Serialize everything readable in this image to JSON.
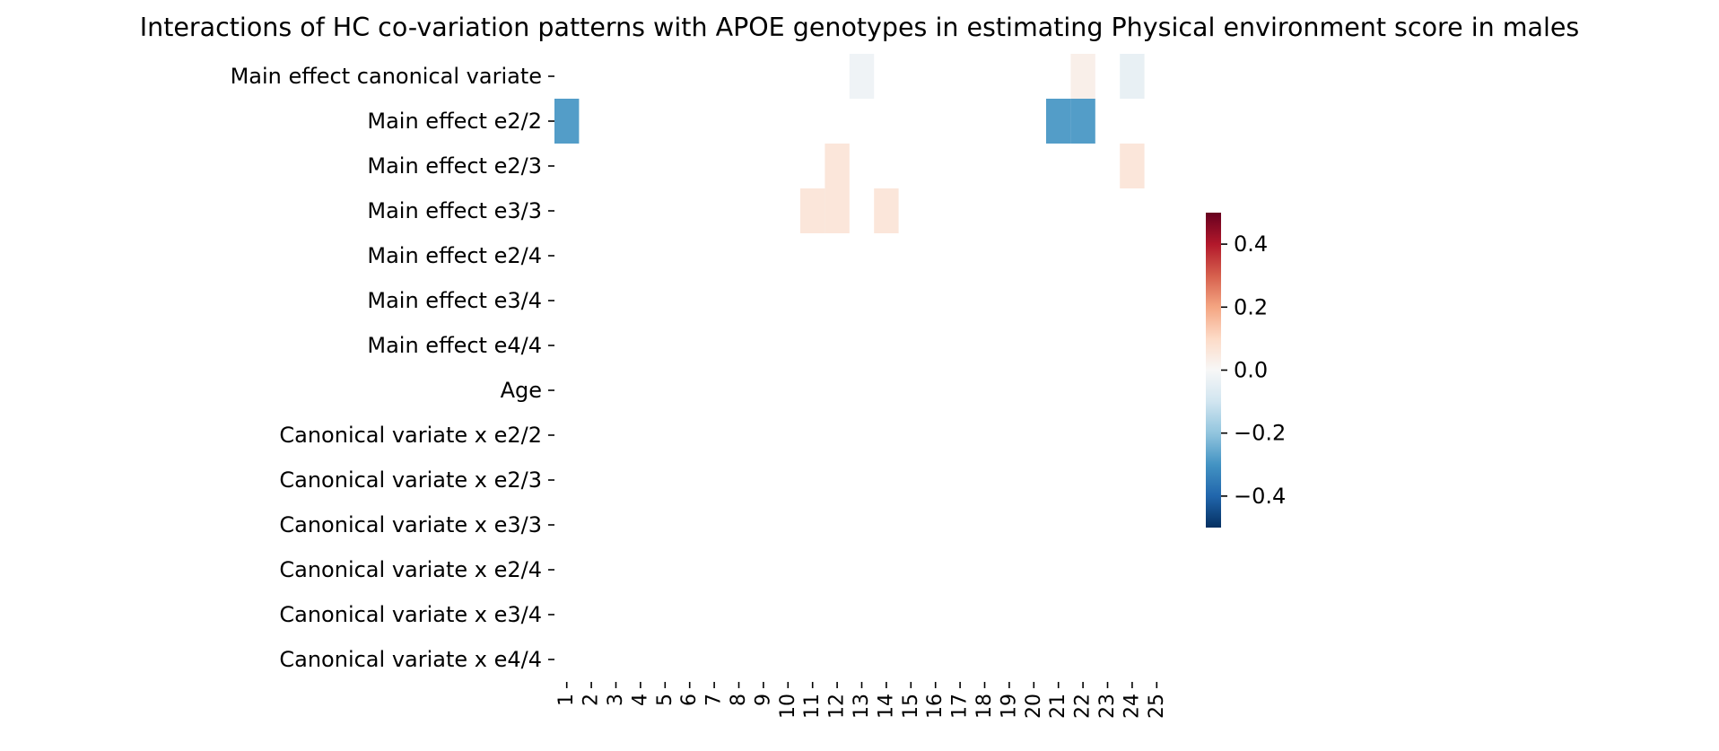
{
  "chart_data": {
    "type": "heatmap",
    "title": "Interactions of HC co-variation patterns with APOE genotypes in estimating Physical environment score in males",
    "xlabel": "",
    "ylabel": "",
    "x_categories": [
      "1",
      "2",
      "3",
      "4",
      "5",
      "6",
      "7",
      "8",
      "9",
      "10",
      "11",
      "12",
      "13",
      "14",
      "15",
      "16",
      "17",
      "18",
      "19",
      "20",
      "21",
      "22",
      "23",
      "24",
      "25"
    ],
    "y_categories": [
      "Main effect canonical variate",
      "Main effect e2/2",
      "Main effect e2/3",
      "Main effect e3/3",
      "Main effect e2/4",
      "Main effect e3/4",
      "Main effect e4/4",
      "Age",
      "Canonical variate x e2/2",
      "Canonical variate x e2/3",
      "Canonical variate x e3/3",
      "Canonical variate x e2/4",
      "Canonical variate x e3/4",
      "Canonical variate x e4/4"
    ],
    "cells": [
      {
        "row": 0,
        "col": 12,
        "value": -0.02
      },
      {
        "row": 0,
        "col": 21,
        "value": 0.03
      },
      {
        "row": 0,
        "col": 23,
        "value": -0.04
      },
      {
        "row": 1,
        "col": 0,
        "value": -0.28
      },
      {
        "row": 1,
        "col": 20,
        "value": -0.28
      },
      {
        "row": 1,
        "col": 21,
        "value": -0.28
      },
      {
        "row": 2,
        "col": 11,
        "value": 0.06
      },
      {
        "row": 2,
        "col": 23,
        "value": 0.06
      },
      {
        "row": 3,
        "col": 10,
        "value": 0.06
      },
      {
        "row": 3,
        "col": 11,
        "value": 0.06
      },
      {
        "row": 3,
        "col": 13,
        "value": 0.06
      }
    ],
    "empty_cells": "blank (not significant)",
    "colormap": "RdBu_r",
    "vmin": -0.5,
    "vmax": 0.5,
    "colorbar": {
      "ticks": [
        0.4,
        0.2,
        0.0,
        -0.2,
        -0.4
      ],
      "tick_labels": [
        "0.4",
        "0.2",
        "0.0",
        "−0.2",
        "−0.4"
      ],
      "placement": "right"
    },
    "grid": false
  }
}
